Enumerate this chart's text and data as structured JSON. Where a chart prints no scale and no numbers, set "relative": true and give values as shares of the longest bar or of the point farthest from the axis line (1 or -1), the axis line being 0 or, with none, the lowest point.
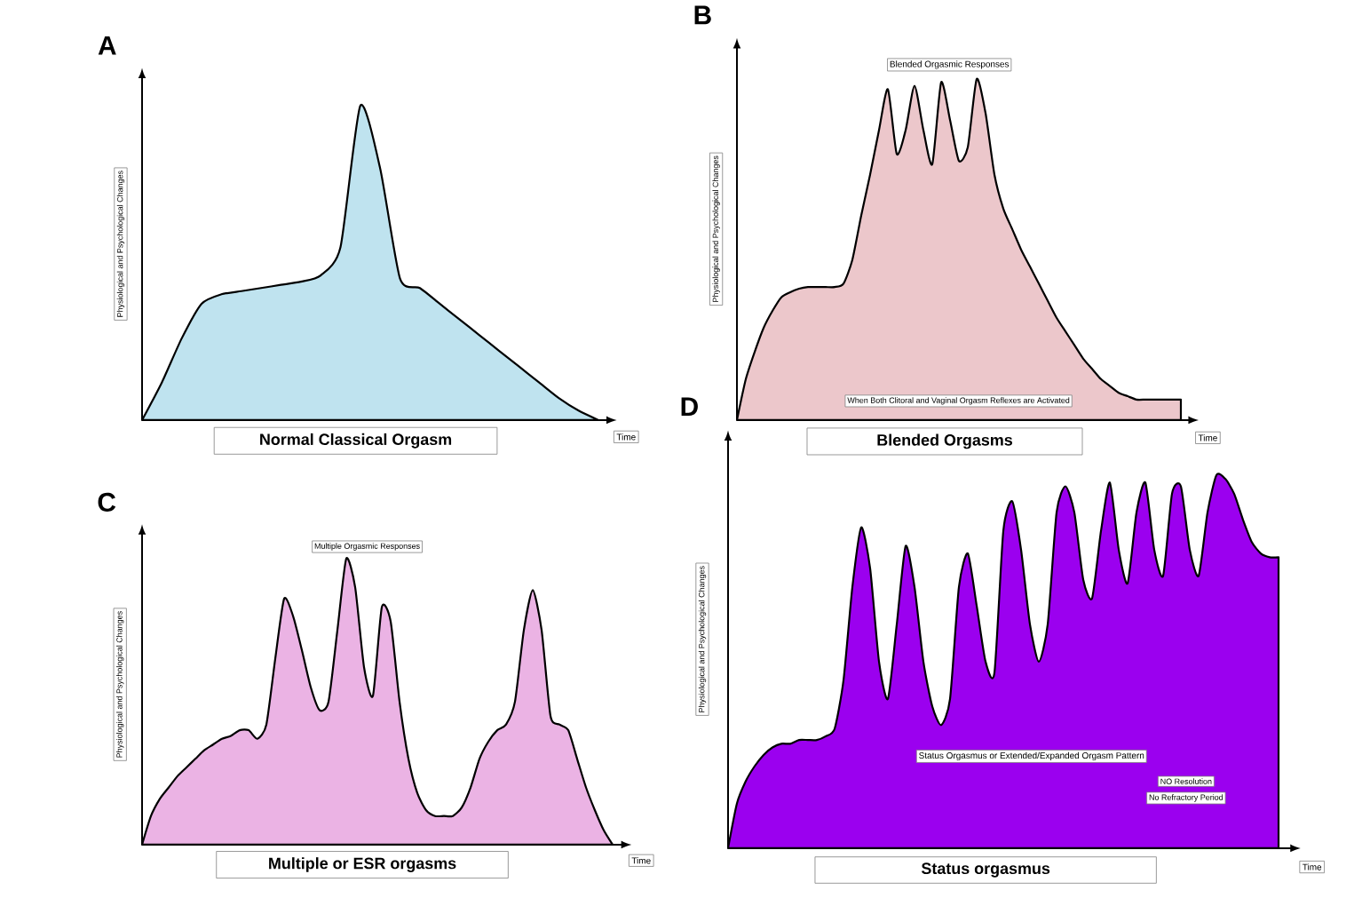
{
  "chart_data": [
    {
      "type": "area",
      "relative": true,
      "title": "A",
      "subtitle": "Normal Classical Orgasm",
      "xlabel": "Time",
      "ylabel": "Physiological and Psychological Changes",
      "categories": [
        null,
        null,
        null,
        null,
        null,
        null,
        null,
        null,
        null,
        null,
        null,
        null,
        null,
        null,
        null,
        null,
        null,
        null,
        null,
        null,
        null,
        null,
        null,
        null
      ],
      "series": [
        {
          "color": "#bfe3ef",
          "values": [
            0,
            0.12,
            0.26,
            0.37,
            0.4,
            0.41,
            0.42,
            0.43,
            0.44,
            0.46,
            0.55,
            1.0,
            0.8,
            0.45,
            0.42,
            0.37,
            0.32,
            0.27,
            0.22,
            0.17,
            0.12,
            0.07,
            0.03,
            0
          ]
        }
      ]
    },
    {
      "type": "area",
      "relative": true,
      "title": "B",
      "subtitle": "Blended Orgasms",
      "xlabel": "Time",
      "ylabel": "Physiological and Psychological Changes",
      "annotations": [
        "Blended Orgasmic Responses",
        "When Both Clitoral and Vaginal Orgasm Reflexes are Activated"
      ],
      "categories": [
        null,
        null,
        null,
        null,
        null,
        null,
        null,
        null,
        null,
        null,
        null,
        null,
        null,
        null,
        null,
        null,
        null,
        null,
        null,
        null,
        null,
        null,
        null,
        null,
        null,
        null,
        null,
        null,
        null,
        null,
        null,
        null,
        null,
        null,
        null,
        null,
        null,
        null,
        null,
        null,
        null,
        null,
        null,
        null,
        null,
        null,
        null,
        null,
        null,
        null,
        null
      ],
      "series": [
        {
          "color": "#ecc7cb",
          "values": [
            0,
            0.12,
            0.2,
            0.27,
            0.32,
            0.36,
            0.375,
            0.385,
            0.39,
            0.39,
            0.39,
            0.39,
            0.4,
            0.47,
            0.6,
            0.72,
            0.85,
            0.97,
            0.78,
            0.85,
            0.98,
            0.85,
            0.75,
            0.99,
            0.88,
            0.76,
            0.8,
            1.0,
            0.9,
            0.72,
            0.62,
            0.56,
            0.5,
            0.45,
            0.4,
            0.35,
            0.3,
            0.26,
            0.22,
            0.18,
            0.15,
            0.12,
            0.1,
            0.08,
            0.07,
            0.06,
            0.06,
            0.06,
            0.06,
            0.06,
            0.06
          ]
        }
      ]
    },
    {
      "type": "area",
      "relative": true,
      "title": "C",
      "subtitle": "Multiple or ESR orgasms",
      "xlabel": "Time",
      "ylabel": "Physiological and Psychological Changes",
      "annotations": [
        "Multiple Orgasmic Responses"
      ],
      "categories": [
        null,
        null,
        null,
        null,
        null,
        null,
        null,
        null,
        null,
        null,
        null,
        null,
        null,
        null,
        null,
        null,
        null,
        null,
        null,
        null,
        null,
        null,
        null,
        null,
        null,
        null,
        null,
        null,
        null,
        null,
        null,
        null,
        null,
        null,
        null,
        null,
        null,
        null,
        null,
        null,
        null,
        null,
        null,
        null,
        null,
        null,
        null,
        null,
        null,
        null,
        null,
        null,
        null,
        null
      ],
      "series": [
        {
          "color": "#ebb3e4",
          "values": [
            0,
            0.1,
            0.16,
            0.2,
            0.24,
            0.27,
            0.3,
            0.33,
            0.35,
            0.37,
            0.38,
            0.4,
            0.4,
            0.37,
            0.42,
            0.65,
            0.86,
            0.8,
            0.68,
            0.55,
            0.47,
            0.5,
            0.75,
            1.0,
            0.9,
            0.62,
            0.52,
            0.83,
            0.78,
            0.5,
            0.3,
            0.18,
            0.12,
            0.1,
            0.1,
            0.1,
            0.13,
            0.2,
            0.3,
            0.36,
            0.4,
            0.42,
            0.5,
            0.75,
            0.89,
            0.75,
            0.45,
            0.42,
            0.4,
            0.3,
            0.2,
            0.12,
            0.05,
            0
          ]
        }
      ]
    },
    {
      "type": "area",
      "relative": true,
      "title": "D",
      "subtitle": "Status orgasmus",
      "xlabel": "Time",
      "ylabel": "Physiological and Psychological Changes",
      "annotations": [
        "Status Orgasmus or Extended/Expanded Orgasm Pattern",
        "NO Resolution",
        "No Refractory Period"
      ],
      "categories": [
        null,
        null,
        null,
        null,
        null,
        null,
        null,
        null,
        null,
        null,
        null,
        null,
        null,
        null,
        null,
        null,
        null,
        null,
        null,
        null,
        null,
        null,
        null,
        null,
        null,
        null,
        null,
        null,
        null,
        null,
        null,
        null,
        null,
        null,
        null,
        null,
        null,
        null,
        null,
        null,
        null,
        null,
        null,
        null,
        null,
        null,
        null,
        null,
        null,
        null,
        null,
        null,
        null,
        null,
        null,
        null,
        null,
        null,
        null,
        null,
        null,
        null,
        null
      ],
      "series": [
        {
          "color": "#9b00ef",
          "values": [
            0,
            0.12,
            0.18,
            0.22,
            0.25,
            0.27,
            0.28,
            0.28,
            0.29,
            0.29,
            0.29,
            0.3,
            0.32,
            0.45,
            0.7,
            0.86,
            0.75,
            0.5,
            0.4,
            0.6,
            0.81,
            0.7,
            0.5,
            0.38,
            0.33,
            0.4,
            0.7,
            0.79,
            0.65,
            0.5,
            0.47,
            0.85,
            0.93,
            0.8,
            0.6,
            0.5,
            0.6,
            0.9,
            0.97,
            0.9,
            0.72,
            0.67,
            0.85,
            0.98,
            0.8,
            0.71,
            0.9,
            0.98,
            0.8,
            0.73,
            0.95,
            0.97,
            0.8,
            0.73,
            0.9,
            1.0,
            0.99,
            0.95,
            0.88,
            0.82,
            0.79,
            0.78,
            0.78
          ]
        }
      ]
    }
  ]
}
